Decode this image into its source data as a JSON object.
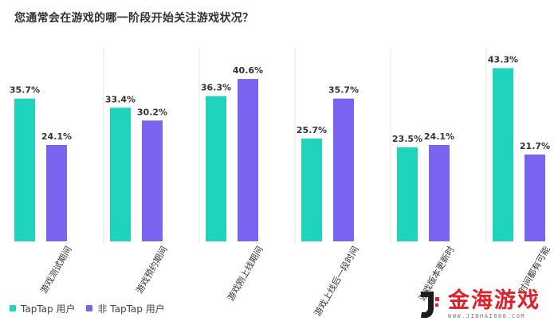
{
  "chart_data": {
    "type": "bar",
    "title": "您通常会在游戏的哪一阶段开始关注游戏状况？",
    "categories": [
      "游戏测试期间",
      "游戏预约期间",
      "游戏刚上线期间",
      "游戏上线后一段时间",
      "游戏版本更新时",
      "各个时间都有可能"
    ],
    "series": [
      {
        "name": "TapTap 用户",
        "color": "#1fd3bd",
        "values": [
          35.7,
          33.4,
          36.3,
          25.7,
          23.5,
          43.3
        ],
        "labels": [
          "35.7%",
          "33.4%",
          "36.3%",
          "25.7%",
          "23.5%",
          "43.3%"
        ]
      },
      {
        "name": "非 TapTap 用户",
        "color": "#7b63f2",
        "values": [
          24.1,
          30.2,
          40.6,
          35.7,
          24.1,
          21.7
        ],
        "labels": [
          "24.1%",
          "30.2%",
          "40.6%",
          "35.7%",
          "24.1%",
          "21.7%"
        ]
      }
    ],
    "category_labels_visible": [
      "游戏测试期间",
      "游戏预约期间",
      "游戏刚上线期间",
      "游戏上线后一段时间",
      "游戏版本更新时",
      "时间都有可能"
    ],
    "ylim": [
      0,
      45
    ],
    "xlabel": "",
    "ylabel": "",
    "grid": false,
    "legend_position": "bottom-left"
  },
  "watermark": {
    "text": "金海游戏",
    "url": "WWW.JINHAI888.COM"
  }
}
